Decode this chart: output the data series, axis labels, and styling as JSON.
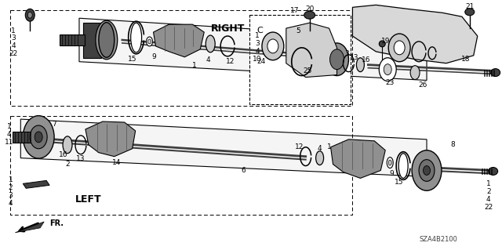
{
  "bg_color": "#ffffff",
  "figsize": [
    6.4,
    3.19
  ],
  "dpi": 100,
  "diagram_code": "SZA4B2100",
  "right_label": "RIGHT",
  "left_label": "LEFT",
  "fr_label": "FR.",
  "line_color": "#000000",
  "text_color": "#000000",
  "gray_dark": "#404040",
  "gray_mid": "#707070",
  "gray_light": "#b0b0b0",
  "gray_fill": "#c8c8c8",
  "white": "#ffffff",
  "font_size_labels": 6.5,
  "font_size_title": 9,
  "font_size_code": 6
}
